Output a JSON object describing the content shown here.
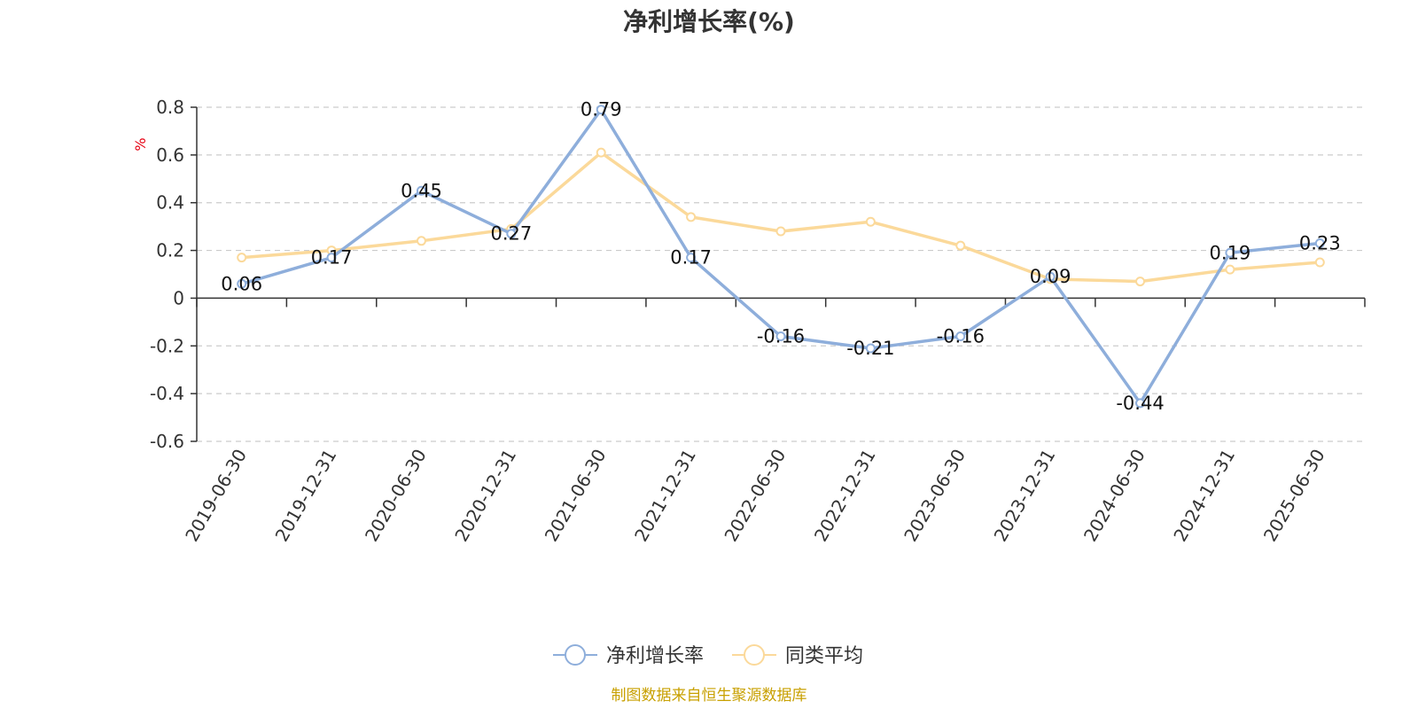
{
  "chart_data": {
    "type": "line",
    "title": "净利增长率(%)",
    "ylabel": "%",
    "x": [
      "2019-06-30",
      "2019-12-31",
      "2020-06-30",
      "2020-12-31",
      "2021-06-30",
      "2021-12-31",
      "2022-06-30",
      "2022-12-31",
      "2023-06-30",
      "2023-12-31",
      "2024-06-30",
      "2024-12-31",
      "2025-06-30"
    ],
    "ylim": [
      -0.6,
      0.8
    ],
    "yticks": [
      0.8,
      0.6,
      0.4,
      0.2,
      0,
      -0.2,
      -0.4,
      -0.6
    ],
    "ytick_labels": [
      "0.8",
      "0.6",
      "0.4",
      "0.2",
      "0",
      "-0.2",
      "-0.4",
      "-0.6"
    ],
    "grid": true,
    "legend_position": "bottom",
    "series": [
      {
        "name": "净利增长率",
        "color": "#8eaedb",
        "values": [
          0.06,
          0.17,
          0.45,
          0.27,
          0.79,
          0.17,
          -0.16,
          -0.21,
          -0.16,
          0.09,
          -0.44,
          0.19,
          0.23
        ],
        "labels": [
          "0.06",
          "0.17",
          "0.45",
          "0.27",
          "0.79",
          "0.17",
          "-0.16",
          "-0.21",
          "-0.16",
          "0.09",
          "-0.44",
          "0.19",
          "0.23"
        ]
      },
      {
        "name": "同类平均",
        "color": "#fbd99a",
        "values": [
          0.17,
          0.2,
          0.24,
          0.29,
          0.61,
          0.34,
          0.28,
          0.32,
          0.22,
          0.08,
          0.07,
          0.12,
          0.15
        ]
      }
    ]
  },
  "source_text": "制图数据来自恒生聚源数据库"
}
